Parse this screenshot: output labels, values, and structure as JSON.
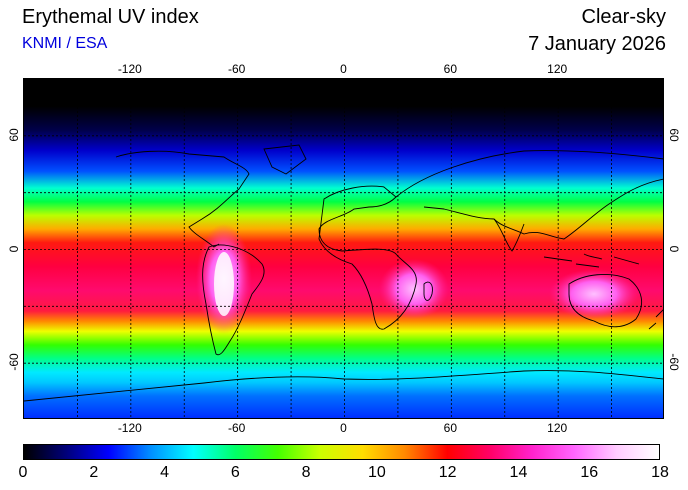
{
  "header": {
    "title": "Erythemal UV index",
    "credit": "KNMI / ESA",
    "mode": "Clear-sky",
    "date": "7 January 2026"
  },
  "map": {
    "lon_ticks": [
      "-120",
      "-60",
      "0",
      "60",
      "120"
    ],
    "lon_values": [
      -120,
      -60,
      0,
      60,
      120
    ],
    "lat_ticks": [
      "60",
      "0",
      "-60"
    ],
    "lat_values": [
      60,
      0,
      -60
    ],
    "lon_range": [
      -180,
      180
    ],
    "lat_range": [
      -90,
      90
    ],
    "grid": true
  },
  "colorbar": {
    "ticks": [
      "0",
      "2",
      "4",
      "6",
      "8",
      "10",
      "12",
      "14",
      "16",
      "18"
    ],
    "range": [
      0,
      18
    ],
    "stops": [
      "#000000",
      "#00007a",
      "#0000ff",
      "#0090ff",
      "#00ffff",
      "#00ff66",
      "#44ff00",
      "#ccff00",
      "#ffdd00",
      "#ff8800",
      "#ff0000",
      "#ff0066",
      "#ff22cc",
      "#ff66ff",
      "#ffccff",
      "#ffffff"
    ]
  }
}
